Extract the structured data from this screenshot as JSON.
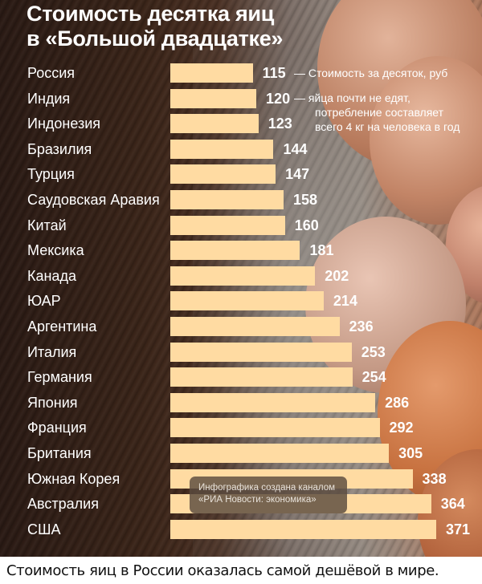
{
  "chart_data": {
    "type": "bar",
    "orientation": "horizontal",
    "title": "Стоимость десятка яиц в «Большой двадцатке»",
    "xlabel": "Стоимость за десяток, руб",
    "ylabel": "",
    "categories": [
      "Россия",
      "Индия",
      "Индонезия",
      "Бразилия",
      "Турция",
      "Саудовская Аравия",
      "Китай",
      "Мексика",
      "Канада",
      "ЮАР",
      "Аргентина",
      "Италия",
      "Германия",
      "Япония",
      "Франция",
      "Британия",
      "Южная Корея",
      "Австралия",
      "США"
    ],
    "values": [
      115,
      120,
      123,
      144,
      147,
      158,
      160,
      181,
      202,
      214,
      236,
      253,
      254,
      286,
      292,
      305,
      338,
      364,
      371
    ],
    "annotations": [
      {
        "target": "Россия",
        "text": "Стоимость за десяток, руб"
      },
      {
        "target": "Индия",
        "text": "яйца почти не едят, потребление составляет всего 4 кг на человека в год"
      }
    ],
    "grid": false,
    "legend": "none",
    "bar_color": "#ffdba2"
  },
  "title_line1": "Стоимость десятка яиц",
  "title_line2": "в «Большой двадцатке»",
  "rows": [
    {
      "country": "Россия",
      "value": "115"
    },
    {
      "country": "Индия",
      "value": "120"
    },
    {
      "country": "Индонезия",
      "value": "123"
    },
    {
      "country": "Бразилия",
      "value": "144"
    },
    {
      "country": "Турция",
      "value": "147"
    },
    {
      "country": "Саудовская Аравия",
      "value": "158"
    },
    {
      "country": "Китай",
      "value": "160"
    },
    {
      "country": "Мексика",
      "value": "181"
    },
    {
      "country": "Канада",
      "value": "202"
    },
    {
      "country": "ЮАР",
      "value": "214"
    },
    {
      "country": "Аргентина",
      "value": "236"
    },
    {
      "country": "Италия",
      "value": "253"
    },
    {
      "country": "Германия",
      "value": "254"
    },
    {
      "country": "Япония",
      "value": "286"
    },
    {
      "country": "Франция",
      "value": "292"
    },
    {
      "country": "Британия",
      "value": "305"
    },
    {
      "country": "Южная Корея",
      "value": "338"
    },
    {
      "country": "Австралия",
      "value": "364"
    },
    {
      "country": "США",
      "value": "371"
    }
  ],
  "annotation_russia": "— Стоимость за десяток, руб",
  "annotation_india_1": "— яйца почти не едят,",
  "annotation_india_2": "потребление составляет",
  "annotation_india_3": "всего 4 кг на человека в год",
  "watermark_line1": "Инфографика создана каналом",
  "watermark_line2": "«РИА Новости: экономика»",
  "caption": "Стоимость яиц в России оказалась самой дешёвой в мире."
}
